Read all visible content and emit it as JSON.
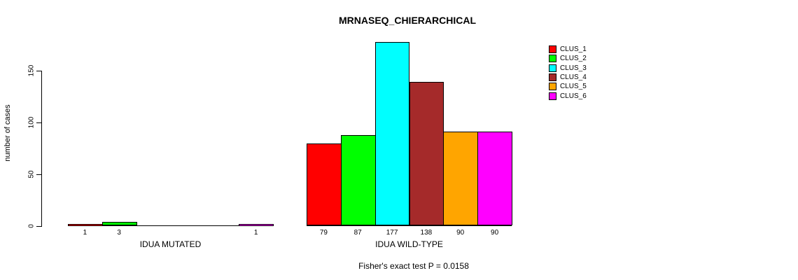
{
  "chart_data": {
    "type": "bar",
    "title": "MRNASEQ_CHIERARCHICAL",
    "ylabel": "number of cases",
    "xlabel": "",
    "yticks": [
      0,
      50,
      100,
      150
    ],
    "ylim": [
      0,
      177
    ],
    "grid": false,
    "legend_position": "top-right",
    "annotation": "Fisher's exact test P = 0.0158",
    "colors": [
      "#FF0000",
      "#00FF00",
      "#00FFFF",
      "#A52A2A",
      "#FFA500",
      "#FF00FF"
    ],
    "legend_labels": [
      "CLUS_1",
      "CLUS_2",
      "CLUS_3",
      "CLUS_4",
      "CLUS_5",
      "CLUS_6"
    ],
    "groups": [
      {
        "label": "IDUA MUTATED",
        "values": [
          1,
          3,
          0,
          0,
          0,
          1
        ],
        "bar_labels": [
          "1",
          "3",
          "",
          "",
          "",
          "1"
        ]
      },
      {
        "label": "IDUA WILD-TYPE",
        "values": [
          79,
          87,
          177,
          138,
          90,
          90
        ],
        "bar_labels": [
          "79",
          "87",
          "177",
          "138",
          "90",
          "90"
        ]
      }
    ]
  }
}
